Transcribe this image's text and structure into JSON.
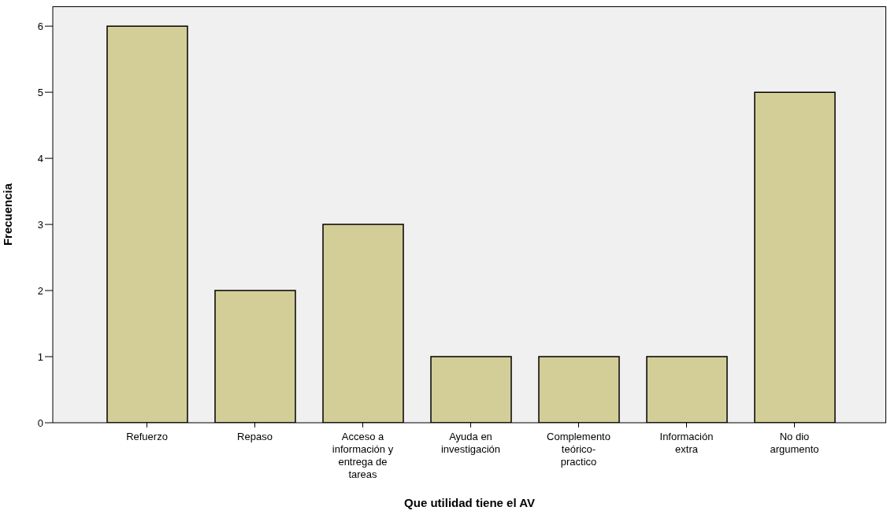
{
  "chart_data": {
    "type": "bar",
    "xlabel": "Que utilidad tiene el AV",
    "ylabel": "Frecuencia",
    "categories": [
      "Refuerzo",
      "Repaso",
      "Acceso a información y entrega de tareas",
      "Ayuda en investigación",
      "Complemento teórico-practico",
      "Información extra",
      "No dio argumento"
    ],
    "values": [
      6,
      2,
      3,
      1,
      1,
      1,
      5
    ],
    "color": "#d3ce97",
    "ylim": [
      0,
      6.3
    ],
    "yticks": [
      0,
      1,
      2,
      3,
      4,
      5,
      6
    ]
  }
}
